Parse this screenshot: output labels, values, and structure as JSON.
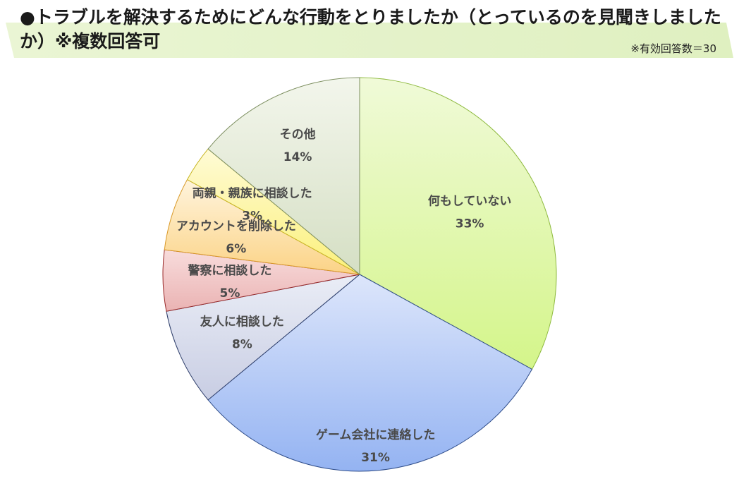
{
  "header": {
    "title": "●トラブルを解決するためにどんな行動をとりましたか（とっているのを見聞きしましたか）※複数回答可",
    "note": "※有効回答数＝30"
  },
  "chart_data": {
    "type": "pie",
    "title": "●トラブルを解決するためにどんな行動をとりましたか（とっているのを見聞きしましたか）※複数回答可",
    "slices": [
      {
        "label": "何もしていない",
        "value": 33,
        "value_label": "33%",
        "color_top": "#f0fad8",
        "color_bottom": "#d4f58a",
        "stroke": "#8cb83c"
      },
      {
        "label": "ゲーム会社に連絡した",
        "value": 31,
        "value_label": "31%",
        "color_top": "#dde6fb",
        "color_bottom": "#94b3f2",
        "stroke": "#2f4d8a"
      },
      {
        "label": "友人に相談した",
        "value": 8,
        "value_label": "8%",
        "color_top": "#eaedf6",
        "color_bottom": "#c8cde3",
        "stroke": "#2f3f6b"
      },
      {
        "label": "警察に相談した",
        "value": 5,
        "value_label": "5%",
        "color_top": "#f8dcdc",
        "color_bottom": "#eab3b3",
        "stroke": "#9a2a2a"
      },
      {
        "label": "アカウントを削除した",
        "value": 6,
        "value_label": "6%",
        "color_top": "#fff4dd",
        "color_bottom": "#fbd386",
        "stroke": "#d99a2a"
      },
      {
        "label": "両親・親族に相談した",
        "value": 3,
        "value_label": "3%",
        "color_top": "#fffbd6",
        "color_bottom": "#fbf07a",
        "stroke": "#c7b522"
      },
      {
        "label": "その他",
        "value": 14,
        "value_label": "14%",
        "color_top": "#f3f6ec",
        "color_bottom": "#d5dfc4",
        "stroke": "#7c8e5f"
      }
    ],
    "legend": "none",
    "label_position": "inside"
  }
}
